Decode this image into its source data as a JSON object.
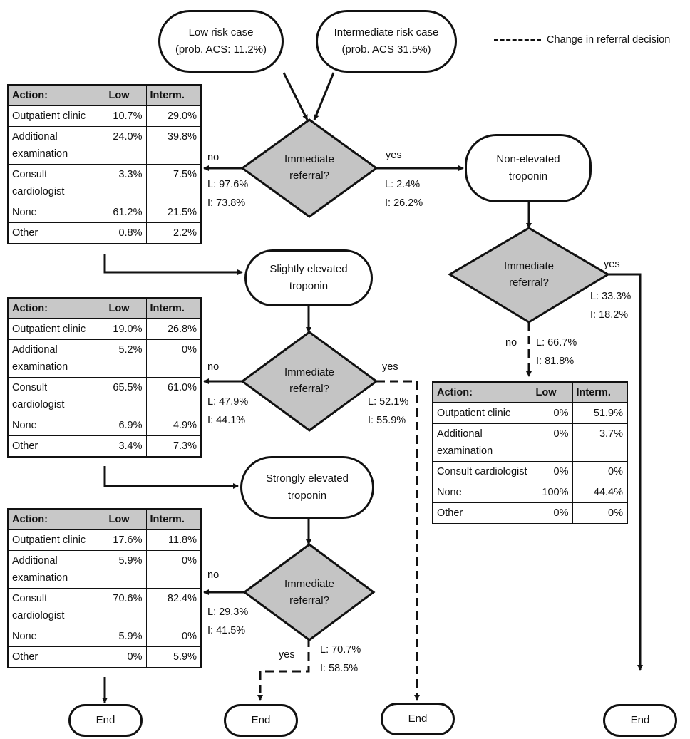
{
  "legend": {
    "label": "Change in referral decision"
  },
  "start_nodes": {
    "low": {
      "line1": "Low risk case",
      "line2": "(prob. ACS: 11.2%)"
    },
    "intermediate": {
      "line1": "Intermediate risk case",
      "line2": "(prob. ACS 31.5%)"
    }
  },
  "decision_label": {
    "line1": "Immediate",
    "line2": "referral?"
  },
  "troponin_nodes": {
    "non_elevated": {
      "line1": "Non-elevated",
      "line2": "troponin"
    },
    "slightly": {
      "line1": "Slightly elevated",
      "line2": "troponin"
    },
    "strongly": {
      "line1": "Strongly elevated",
      "line2": "troponin"
    }
  },
  "branch_words": {
    "yes": "yes",
    "no": "no"
  },
  "end_label": "End",
  "splits": {
    "initial_no": {
      "l": "L: 97.6%",
      "i": "I:  73.8%"
    },
    "initial_yes": {
      "l": "L:  2.4%",
      "i": "I: 26.2%"
    },
    "non_elevated_yes": {
      "l": "L: 33.3%",
      "i": "I: 18.2%"
    },
    "non_elevated_no": {
      "l": "L: 66.7%",
      "i": "I: 81.8%"
    },
    "slightly_no": {
      "l": "L: 47.9%",
      "i": "I:  44.1%"
    },
    "slightly_yes": {
      "l": "L: 52.1%",
      "i": "I:  55.9%"
    },
    "strongly_no": {
      "l": "L: 29.3%",
      "i": "I: 41.5%"
    },
    "strongly_yes": {
      "l": "L: 70.7%",
      "i": "I:  58.5%"
    }
  },
  "table_headers": [
    "Action:",
    "Low",
    "Interm."
  ],
  "tables": {
    "initial": [
      [
        "Outpatient clinic",
        "10.7%",
        "29.0%"
      ],
      [
        "Additional examination",
        "24.0%",
        "39.8%"
      ],
      [
        "Consult cardiologist",
        "3.3%",
        "7.5%"
      ],
      [
        "None",
        "61.2%",
        "21.5%"
      ],
      [
        "Other",
        "0.8%",
        "2.2%"
      ]
    ],
    "slightly": [
      [
        "Outpatient clinic",
        "19.0%",
        "26.8%"
      ],
      [
        "Additional examination",
        "5.2%",
        "0%"
      ],
      [
        "Consult cardiologist",
        "65.5%",
        "61.0%"
      ],
      [
        "None",
        "6.9%",
        "4.9%"
      ],
      [
        "Other",
        "3.4%",
        "7.3%"
      ]
    ],
    "strongly": [
      [
        "Outpatient clinic",
        "17.6%",
        "11.8%"
      ],
      [
        "Additional examination",
        "5.9%",
        "0%"
      ],
      [
        "Consult cardiologist",
        "70.6%",
        "82.4%"
      ],
      [
        "None",
        "5.9%",
        "0%"
      ],
      [
        "Other",
        "0%",
        "5.9%"
      ]
    ],
    "non_elevated": [
      [
        "Outpatient clinic",
        "0%",
        "51.9%"
      ],
      [
        "Additional examination",
        "0%",
        "3.7%"
      ],
      [
        "Consult cardiologist",
        "0%",
        "0%"
      ],
      [
        "None",
        "100%",
        "44.4%"
      ],
      [
        "Other",
        "0%",
        "0%"
      ]
    ]
  }
}
